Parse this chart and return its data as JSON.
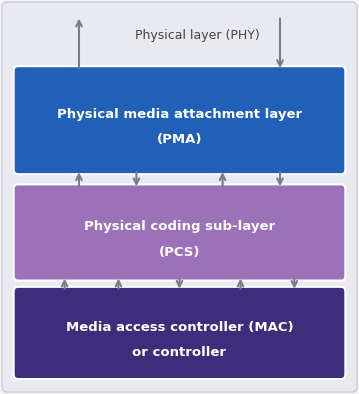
{
  "fig_width": 3.59,
  "fig_height": 3.94,
  "dpi": 100,
  "bg_outer_color": "#f5f5f5",
  "bg_inner_color": "#e9e9f0",
  "bg_inner_edge": "#d0d0dd",
  "pma_color": "#2060b8",
  "pma_text_line1": "Physical media attachment layer",
  "pma_text_line2": "(PMA)",
  "pcs_color": "#9b72b8",
  "pcs_text_line1": "Physical coding sub-layer",
  "pcs_text_line2": "(PCS)",
  "mac_color": "#3d2d7a",
  "mac_text_line1": "Media access controller (MAC)",
  "mac_text_line2": "or controller",
  "phy_label": "Physical layer (PHY)",
  "arrow_color": "#7a7a8a",
  "text_white": "#ffffff",
  "text_dark": "#444444",
  "arrow_lw": 1.5,
  "arrow_ms": 10
}
